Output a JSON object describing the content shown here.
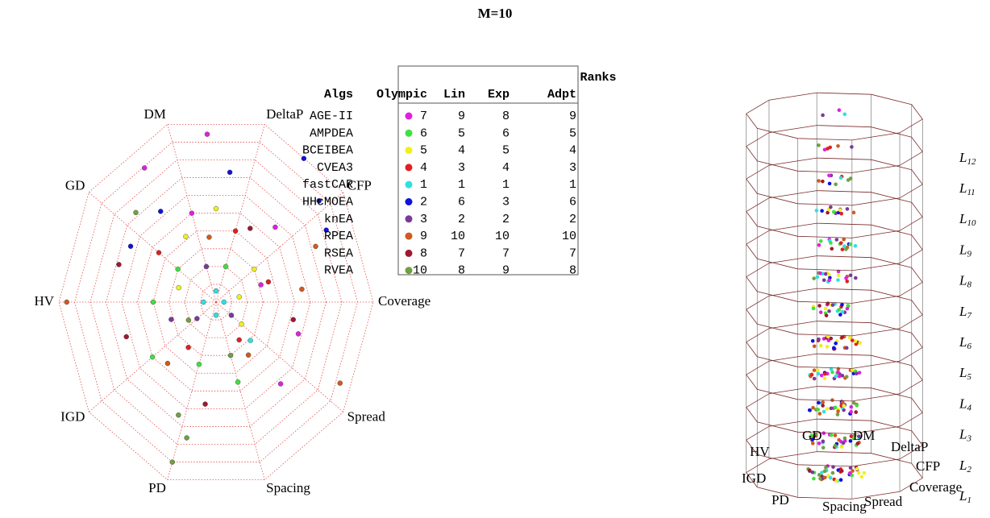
{
  "title": "M=10",
  "chart_data": [
    {
      "type": "radar",
      "axes": [
        "Coverage",
        "CFP",
        "DeltaP",
        "DM",
        "GD",
        "HV",
        "IGD",
        "PD",
        "Spacing",
        "Spread"
      ],
      "rings": 10,
      "grid": true,
      "series": [
        {
          "name": "AGE-II",
          "color": "#e020e0",
          "points": [
            [
              2.6,
              0.9
            ],
            [
              3.4,
              0.85
            ],
            [
              1.3,
              0.55
            ],
            [
              8.7,
              0.6
            ],
            [
              9.5,
              0.55
            ],
            [
              0.5,
              0.3
            ],
            [
              3,
              0.5
            ]
          ]
        },
        {
          "name": "AMPDEA",
          "color": "#40e040",
          "points": [
            [
              5,
              0.4
            ],
            [
              6,
              0.5
            ],
            [
              4,
              0.3
            ],
            [
              7,
              0.35
            ],
            [
              2,
              0.2
            ],
            [
              8,
              0.45
            ]
          ]
        },
        {
          "name": "BCEIBEA",
          "color": "#f0f020",
          "points": [
            [
              1,
              0.3
            ],
            [
              2.5,
              0.5
            ],
            [
              4.5,
              0.25
            ],
            [
              0.3,
              0.15
            ],
            [
              3.3,
              0.4
            ],
            [
              9,
              0.2
            ]
          ]
        },
        {
          "name": "CVEA3",
          "color": "#e02020",
          "points": [
            [
              0.5,
              0.35
            ],
            [
              2,
              0.4
            ],
            [
              6.5,
              0.3
            ],
            [
              8.5,
              0.25
            ],
            [
              4,
              0.45
            ]
          ]
        },
        {
          "name": "fastCAR",
          "color": "#30e0e0",
          "points": [
            [
              0,
              0.05
            ],
            [
              5,
              0.08
            ],
            [
              2.5,
              0.06
            ],
            [
              7.5,
              0.07
            ],
            [
              8.8,
              0.3
            ]
          ]
        },
        {
          "name": "HHcMOEA",
          "color": "#1010e0",
          "points": [
            [
              1.1,
              0.85
            ],
            [
              1.5,
              0.95
            ],
            [
              3.5,
              0.6
            ],
            [
              4.2,
              0.62
            ],
            [
              0.8,
              0.8
            ],
            [
              2.3,
              0.7
            ]
          ]
        },
        {
          "name": "knEA",
          "color": "#7a3a9a",
          "points": [
            [
              6,
              0.15
            ],
            [
              3,
              0.2
            ],
            [
              9,
              0.12
            ],
            [
              5.5,
              0.3
            ]
          ]
        },
        {
          "name": "RPEA",
          "color": "#d05a20",
          "points": [
            [
              0.7,
              0.7
            ],
            [
              5,
              0.95
            ],
            [
              9.2,
              0.9
            ],
            [
              8.5,
              0.35
            ],
            [
              2.7,
              0.35
            ],
            [
              6.3,
              0.45
            ],
            [
              0.2,
              0.55
            ]
          ]
        },
        {
          "name": "RSEA",
          "color": "#a01830",
          "points": [
            [
              4.5,
              0.65
            ],
            [
              5.5,
              0.6
            ],
            [
              9.7,
              0.5
            ],
            [
              1.7,
              0.45
            ],
            [
              7.3,
              0.55
            ]
          ]
        },
        {
          "name": "RVEA",
          "color": "#70a040",
          "points": [
            [
              7.1,
              0.75
            ],
            [
              6.9,
              0.65
            ],
            [
              7,
              0.9
            ],
            [
              3.8,
              0.7
            ],
            [
              5.8,
              0.2
            ],
            [
              8,
              0.3
            ]
          ]
        }
      ]
    },
    {
      "type": "cylinder",
      "level_symbol": "L",
      "levels": [
        1,
        2,
        3,
        4,
        5,
        6,
        7,
        8,
        9,
        10,
        11,
        12
      ]
    }
  ],
  "table": {
    "group_header": "Ranks",
    "columns": [
      "Algs",
      "Olympic",
      "Lin",
      "Exp",
      "Adpt"
    ],
    "rows": [
      [
        "AGE-II",
        7,
        9,
        8,
        9
      ],
      [
        "AMPDEA",
        6,
        5,
        6,
        5
      ],
      [
        "BCEIBEA",
        5,
        4,
        5,
        4
      ],
      [
        "CVEA3",
        4,
        3,
        4,
        3
      ],
      [
        "fastCAR",
        1,
        1,
        1,
        1
      ],
      [
        "HHcMOEA",
        2,
        6,
        3,
        6
      ],
      [
        "knEA",
        3,
        2,
        2,
        2
      ],
      [
        "RPEA",
        9,
        10,
        10,
        10
      ],
      [
        "RSEA",
        8,
        7,
        7,
        7
      ],
      [
        "RVEA",
        10,
        8,
        9,
        8
      ]
    ]
  }
}
